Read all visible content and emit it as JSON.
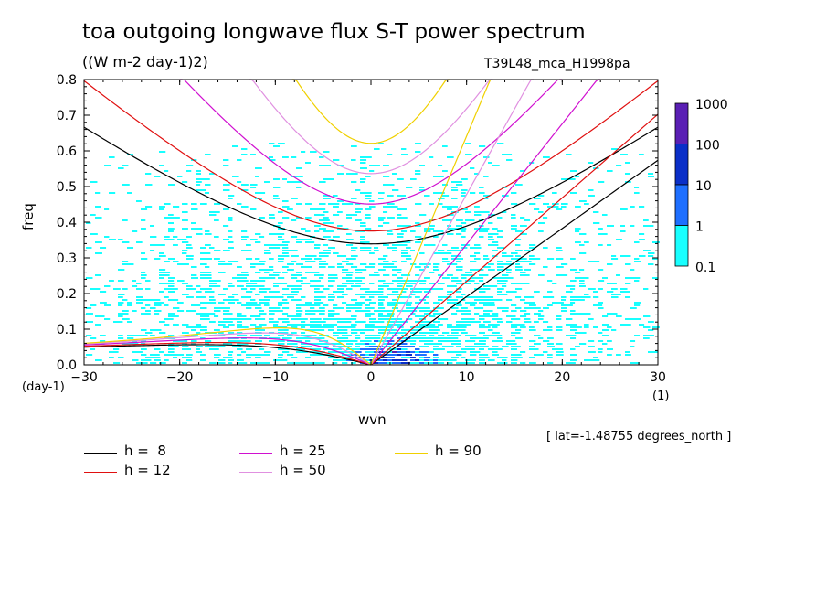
{
  "title": "toa outgoing longwave flux S-T power spectrum",
  "subtitle": "((W m-2 day-1)2)",
  "run_id": "T39L48_mca_H1998pa",
  "lat_note": "[ lat=-1.48755 degrees_north ]",
  "chart_data": {
    "type": "heatmap",
    "xlabel": "wvn",
    "ylabel": "freq",
    "x_unit": "(1)",
    "y_unit": "(day-1)",
    "xlim": [
      -30,
      30
    ],
    "ylim": [
      0,
      0.8
    ],
    "x_ticks": [
      "-30",
      "-20",
      "-10",
      "0",
      "10",
      "20",
      "30"
    ],
    "y_ticks": [
      "0.0",
      "0.1",
      "0.2",
      "0.3",
      "0.4",
      "0.5",
      "0.6",
      "0.7",
      "0.8"
    ],
    "colorbar": {
      "labels": [
        "1000",
        "100",
        "10",
        "1",
        "0.1"
      ],
      "levels": [
        1000,
        100,
        10,
        1,
        0.1
      ],
      "colors": [
        "#5a1fb4",
        "#0a2fc8",
        "#1e6fff",
        "#18ffff"
      ]
    },
    "series": [
      {
        "name": "h =  8",
        "color": "#000000",
        "equivalent_depth": 8
      },
      {
        "name": "h = 12",
        "color": "#e01010",
        "equivalent_depth": 12
      },
      {
        "name": "h = 25",
        "color": "#d010d0",
        "equivalent_depth": 25
      },
      {
        "name": "h = 50",
        "color": "#e090e0",
        "equivalent_depth": 50
      },
      {
        "name": "h = 90",
        "color": "#f0d000",
        "equivalent_depth": 90
      }
    ]
  }
}
